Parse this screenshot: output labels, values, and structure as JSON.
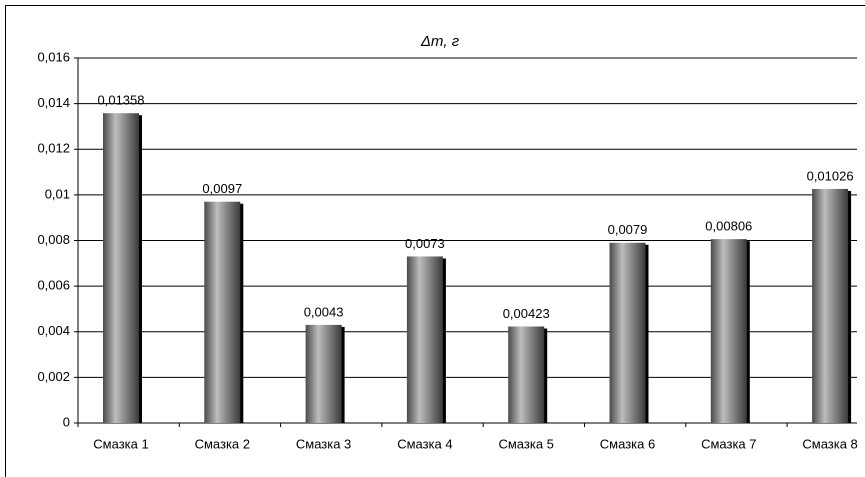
{
  "chart_data": {
    "type": "bar",
    "title": "Δm, г",
    "categories": [
      "Смазка 1",
      "Смазка 2",
      "Смазка 3",
      "Смазка 4",
      "Смазка 5",
      "Смазка 6",
      "Смазка 7",
      "Смазка 8"
    ],
    "values": [
      0.01358,
      0.0097,
      0.0043,
      0.0073,
      0.00423,
      0.0079,
      0.00806,
      0.01026
    ],
    "value_labels": [
      "0,01358",
      "0,0097",
      "0,0043",
      "0,0073",
      "0,00423",
      "0,0079",
      "0,00806",
      "0,01026"
    ],
    "color": "#808080",
    "ylim": [
      0,
      0.016
    ],
    "yticks": [
      0,
      {
        "value": 0.002,
        "label": "0,002"
      },
      {
        "value": 0.004,
        "label": "0,004"
      },
      {
        "value": 0.006,
        "label": "0,006"
      },
      {
        "value": 0.008,
        "label": "0,008"
      },
      {
        "value": 0.01,
        "label": "0,01"
      },
      {
        "value": 0.012,
        "label": "0,012"
      },
      {
        "value": 0.014,
        "label": "0,014"
      },
      {
        "value": 0.016,
        "label": "0,016"
      }
    ],
    "grid": true
  }
}
